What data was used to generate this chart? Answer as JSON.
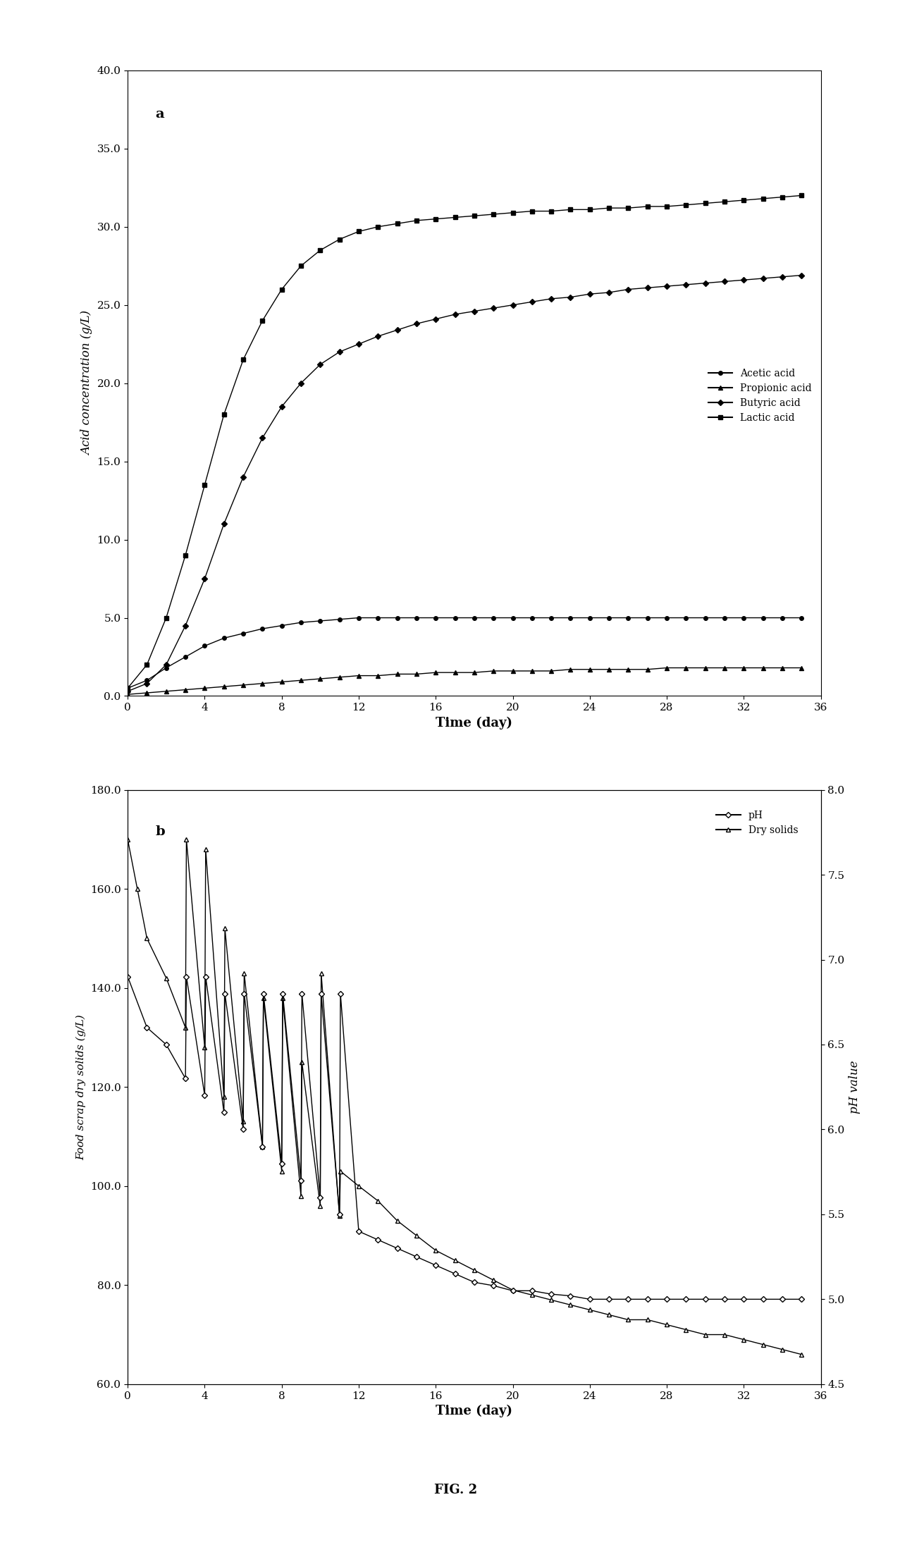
{
  "panel_a": {
    "label": "a",
    "xlabel": "Time (day)",
    "ylabel": "Acid concentration (g/L)",
    "xlim": [
      0,
      36
    ],
    "ylim": [
      0,
      40
    ],
    "yticks": [
      0.0,
      5.0,
      10.0,
      15.0,
      20.0,
      25.0,
      30.0,
      35.0,
      40.0
    ],
    "xticks": [
      0,
      4,
      8,
      12,
      16,
      20,
      24,
      28,
      32,
      36
    ],
    "acetic_x": [
      0,
      1,
      2,
      3,
      4,
      5,
      6,
      7,
      8,
      9,
      10,
      11,
      12,
      13,
      14,
      15,
      16,
      17,
      18,
      19,
      20,
      21,
      22,
      23,
      24,
      25,
      26,
      27,
      28,
      29,
      30,
      31,
      32,
      33,
      34,
      35
    ],
    "acetic_y": [
      0.5,
      1.0,
      1.8,
      2.5,
      3.2,
      3.7,
      4.0,
      4.3,
      4.5,
      4.7,
      4.8,
      4.9,
      5.0,
      5.0,
      5.0,
      5.0,
      5.0,
      5.0,
      5.0,
      5.0,
      5.0,
      5.0,
      5.0,
      5.0,
      5.0,
      5.0,
      5.0,
      5.0,
      5.0,
      5.0,
      5.0,
      5.0,
      5.0,
      5.0,
      5.0,
      5.0
    ],
    "propionic_x": [
      0,
      1,
      2,
      3,
      4,
      5,
      6,
      7,
      8,
      9,
      10,
      11,
      12,
      13,
      14,
      15,
      16,
      17,
      18,
      19,
      20,
      21,
      22,
      23,
      24,
      25,
      26,
      27,
      28,
      29,
      30,
      31,
      32,
      33,
      34,
      35
    ],
    "propionic_y": [
      0.1,
      0.2,
      0.3,
      0.4,
      0.5,
      0.6,
      0.7,
      0.8,
      0.9,
      1.0,
      1.1,
      1.2,
      1.3,
      1.3,
      1.4,
      1.4,
      1.5,
      1.5,
      1.5,
      1.6,
      1.6,
      1.6,
      1.6,
      1.7,
      1.7,
      1.7,
      1.7,
      1.7,
      1.8,
      1.8,
      1.8,
      1.8,
      1.8,
      1.8,
      1.8,
      1.8
    ],
    "butyric_x": [
      0,
      1,
      2,
      3,
      4,
      5,
      6,
      7,
      8,
      9,
      10,
      11,
      12,
      13,
      14,
      15,
      16,
      17,
      18,
      19,
      20,
      21,
      22,
      23,
      24,
      25,
      26,
      27,
      28,
      29,
      30,
      31,
      32,
      33,
      34,
      35
    ],
    "butyric_y": [
      0.3,
      0.8,
      2.0,
      4.5,
      7.5,
      11.0,
      14.0,
      16.5,
      18.5,
      20.0,
      21.2,
      22.0,
      22.5,
      23.0,
      23.4,
      23.8,
      24.1,
      24.4,
      24.6,
      24.8,
      25.0,
      25.2,
      25.4,
      25.5,
      25.7,
      25.8,
      26.0,
      26.1,
      26.2,
      26.3,
      26.4,
      26.5,
      26.6,
      26.7,
      26.8,
      26.9
    ],
    "lactic_x": [
      0,
      1,
      2,
      3,
      4,
      5,
      6,
      7,
      8,
      9,
      10,
      11,
      12,
      13,
      14,
      15,
      16,
      17,
      18,
      19,
      20,
      21,
      22,
      23,
      24,
      25,
      26,
      27,
      28,
      29,
      30,
      31,
      32,
      33,
      34,
      35
    ],
    "lactic_y": [
      0.5,
      2.0,
      5.0,
      9.0,
      13.5,
      18.0,
      21.5,
      24.0,
      26.0,
      27.5,
      28.5,
      29.2,
      29.7,
      30.0,
      30.2,
      30.4,
      30.5,
      30.6,
      30.7,
      30.8,
      30.9,
      31.0,
      31.0,
      31.1,
      31.1,
      31.2,
      31.2,
      31.3,
      31.3,
      31.4,
      31.5,
      31.6,
      31.7,
      31.8,
      31.9,
      32.0
    ],
    "acetic_label": "Acetic acid",
    "propionic_label": "Propionic acid",
    "butyric_label": "Butyric acid",
    "lactic_label": "Lactic acid"
  },
  "panel_b": {
    "label": "b",
    "xlabel": "Time (day)",
    "ylabel_left": "Food scrap dry solids (g/L)",
    "ylabel_right": "pH value",
    "xlim": [
      0,
      36
    ],
    "ylim_left": [
      60.0,
      180.0
    ],
    "ylim_right": [
      4.5,
      8.0
    ],
    "yticks_left": [
      60.0,
      80.0,
      100.0,
      120.0,
      140.0,
      160.0,
      180.0
    ],
    "yticks_right": [
      4.5,
      5.0,
      5.5,
      6.0,
      6.5,
      7.0,
      7.5,
      8.0
    ],
    "xticks": [
      0,
      4,
      8,
      12,
      16,
      20,
      24,
      28,
      32,
      36
    ],
    "ph_label": "pH",
    "ds_label": "Dry solids",
    "ph_x": [
      0,
      1,
      2,
      3,
      3.05,
      4,
      4.05,
      5,
      5.05,
      6,
      6.05,
      7,
      7.05,
      8,
      8.05,
      9,
      9.05,
      10,
      10.05,
      11,
      11.05,
      12,
      13,
      14,
      15,
      16,
      17,
      18,
      19,
      20,
      21,
      22,
      23,
      24,
      25,
      26,
      27,
      28,
      29,
      30,
      31,
      32,
      33,
      34,
      35
    ],
    "ph_y": [
      6.9,
      6.6,
      6.5,
      6.3,
      6.9,
      6.2,
      6.9,
      6.1,
      6.8,
      6.0,
      6.8,
      5.9,
      6.8,
      5.8,
      6.8,
      5.7,
      6.8,
      5.6,
      6.8,
      5.5,
      6.8,
      5.4,
      5.35,
      5.3,
      5.25,
      5.2,
      5.15,
      5.1,
      5.08,
      5.05,
      5.05,
      5.03,
      5.02,
      5.0,
      5.0,
      5.0,
      5.0,
      5.0,
      5.0,
      5.0,
      5.0,
      5.0,
      5.0,
      5.0,
      5.0
    ],
    "ds_x": [
      0,
      0.5,
      1,
      2,
      3,
      3.05,
      4,
      4.05,
      5,
      5.05,
      6,
      6.05,
      7,
      7.05,
      8,
      8.05,
      9,
      9.05,
      10,
      10.05,
      11,
      11.05,
      12,
      13,
      14,
      15,
      16,
      17,
      18,
      19,
      20,
      21,
      22,
      23,
      24,
      25,
      26,
      27,
      28,
      29,
      30,
      31,
      32,
      33,
      34,
      35
    ],
    "ds_y": [
      170,
      160,
      150,
      142,
      132,
      170,
      128,
      168,
      118,
      152,
      113,
      143,
      108,
      138,
      103,
      138,
      98,
      125,
      96,
      143,
      94,
      103,
      100,
      97,
      93,
      90,
      87,
      85,
      83,
      81,
      79,
      78,
      77,
      76,
      75,
      74,
      73,
      73,
      72,
      71,
      70,
      70,
      69,
      68,
      67,
      66
    ]
  },
  "fig_label": "FIG. 2",
  "color": "#000000",
  "markersize": 4,
  "linewidth": 1.0
}
